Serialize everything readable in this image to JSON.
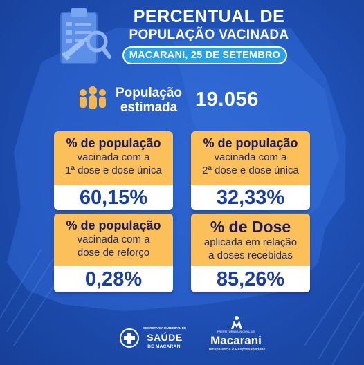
{
  "header": {
    "title_line1": "PERCENTUAL DE",
    "title_line2": "POPULAÇÃO VACINADA",
    "date_badge": "MACARANI, 25 DE SETEMBRO"
  },
  "population": {
    "label_line1": "População",
    "label_line2": "estimada",
    "value": "19.056",
    "icon": "people-group-icon"
  },
  "cards": [
    {
      "heading": "% de população",
      "line1": "vacinada com a",
      "line2": "1ª dose e dose única",
      "value": "60,15%"
    },
    {
      "heading": "% de população",
      "line1": "vacinada com a",
      "line2": "2ª dose e dose única",
      "value": "32,33%"
    },
    {
      "heading": "% de população",
      "line1": "vacinada com a",
      "line2": "dose de reforço",
      "value": "0,28%"
    },
    {
      "heading": "% de Dose",
      "line1": "aplicada em relação",
      "line2": "a doses recebidas",
      "value": "85,26%"
    }
  ],
  "footer": {
    "saude_logo": {
      "small": "SECRETARIA MUNICIPAL DE",
      "big": "SAÚDE",
      "sub": "DE MACARANI"
    },
    "prefeitura_logo": {
      "small": "PREFEITURA MUNICIPAL DE",
      "big": "Macarani",
      "sub": "Transparência e Responsabilidade"
    }
  },
  "colors": {
    "background": "#1f4fb4",
    "card_accent": "#fbc05a",
    "value_text": "#1a3fa3",
    "pill": "#2aa2e8"
  }
}
